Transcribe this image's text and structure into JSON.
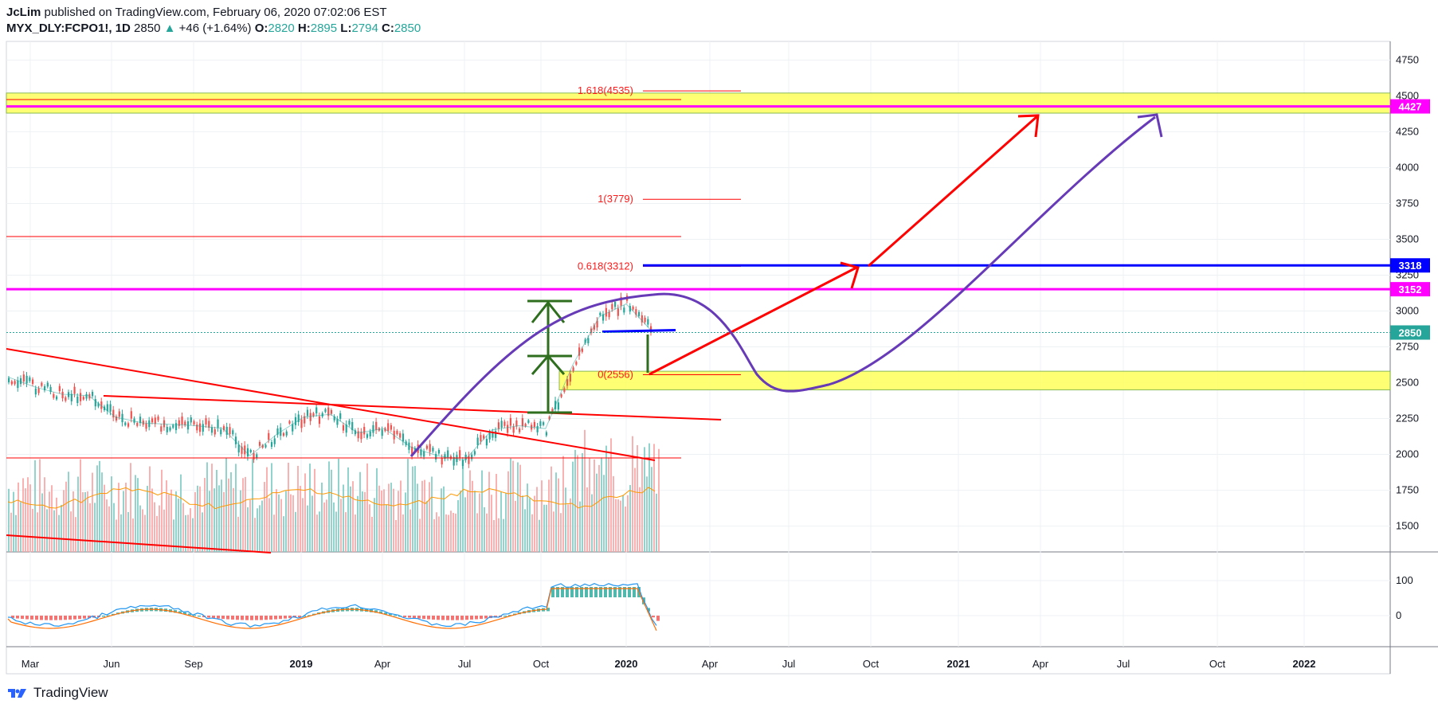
{
  "header": {
    "author": "JcLim",
    "published_text": " published on TradingView.com, February 06, 2020 07:02:06 EST",
    "symbol": "MYX_DLY:FCPO1!, 1D",
    "last": "2850",
    "change": "+46 (+1.64%)",
    "open_label": "O:",
    "open": "2820",
    "high_label": "H:",
    "high": "2895",
    "low_label": "L:",
    "low": "2794",
    "close_label": "C:",
    "close": "2850"
  },
  "footer": {
    "brand": "TradingView"
  },
  "colors": {
    "up": "#26a69a",
    "down": "#ef5350",
    "magenta": "#ff00ff",
    "blue": "#0000ff",
    "red": "#ff0000",
    "purple": "#673ab7",
    "green": "#2e6e1e",
    "yellow": "#ffff66"
  },
  "chart_data": {
    "type": "line",
    "price_axis": {
      "ticks": [
        "4750",
        "4500",
        "4250",
        "4000",
        "3750",
        "3500",
        "3250",
        "3000",
        "2750",
        "2500",
        "2250",
        "2000",
        "1750",
        "1500"
      ],
      "range": [
        1320,
        4880
      ]
    },
    "macd_axis": {
      "ticks": [
        "100",
        "0"
      ]
    },
    "time_axis": {
      "ticks": [
        "Mar",
        "Jun",
        "Sep",
        "2019",
        "Apr",
        "Jul",
        "Oct",
        "2020",
        "Apr",
        "Jul",
        "Oct",
        "2021",
        "Apr",
        "Jul",
        "Oct",
        "2022"
      ]
    },
    "price_tags": [
      {
        "label": "4427",
        "value": 4427,
        "color": "#ff00ff"
      },
      {
        "label": "3318",
        "value": 3318,
        "color": "#0000ff"
      },
      {
        "label": "3152",
        "value": 3152,
        "color": "#ff00ff"
      },
      {
        "label": "2850",
        "value": 2850,
        "color": "#26a69a"
      }
    ],
    "fib_levels": [
      {
        "label": "1.618(4535)",
        "value": 4535
      },
      {
        "label": "1(3779)",
        "value": 3779
      },
      {
        "label": "0.618(3312)",
        "value": 3312
      },
      {
        "label": "0(2556)",
        "value": 2556
      }
    ],
    "zones": [
      {
        "from": 4380,
        "to": 4520,
        "color": "#ffff66"
      },
      {
        "from": 2450,
        "to": 2580,
        "color": "#ffff66"
      }
    ],
    "price_series_monthly": [
      {
        "x": "2018-02",
        "y": 2540
      },
      {
        "x": "2018-03",
        "y": 2470
      },
      {
        "x": "2018-04",
        "y": 2420
      },
      {
        "x": "2018-05",
        "y": 2410
      },
      {
        "x": "2018-06",
        "y": 2260
      },
      {
        "x": "2018-07",
        "y": 2220
      },
      {
        "x": "2018-08",
        "y": 2210
      },
      {
        "x": "2018-09",
        "y": 2200
      },
      {
        "x": "2018-10",
        "y": 2180
      },
      {
        "x": "2018-11",
        "y": 1990
      },
      {
        "x": "2018-12",
        "y": 2140
      },
      {
        "x": "2019-01",
        "y": 2260
      },
      {
        "x": "2019-02",
        "y": 2280
      },
      {
        "x": "2019-03",
        "y": 2150
      },
      {
        "x": "2019-04",
        "y": 2180
      },
      {
        "x": "2019-05",
        "y": 2050
      },
      {
        "x": "2019-06",
        "y": 1990
      },
      {
        "x": "2019-07",
        "y": 1960
      },
      {
        "x": "2019-08",
        "y": 2170
      },
      {
        "x": "2019-09",
        "y": 2200
      },
      {
        "x": "2019-10",
        "y": 2180
      },
      {
        "x": "2019-11",
        "y": 2620
      },
      {
        "x": "2019-12",
        "y": 2960
      },
      {
        "x": "2020-01",
        "y": 3050
      },
      {
        "x": "2020-02",
        "y": 2850
      }
    ]
  }
}
